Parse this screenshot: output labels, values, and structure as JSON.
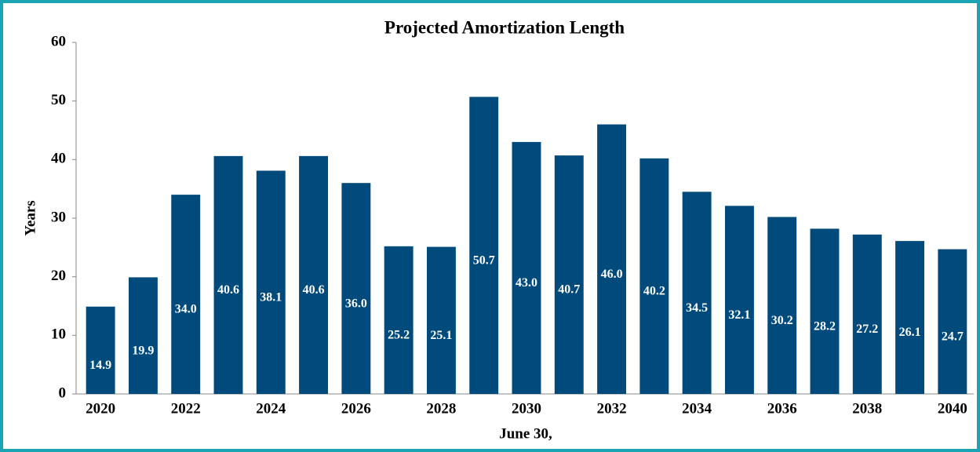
{
  "chart_data": {
    "type": "bar",
    "title": "Projected Amortization  Length",
    "x_label": "June 30,",
    "y_label": "Years",
    "categories": [
      "2020",
      null,
      "2022",
      null,
      "2024",
      null,
      "2026",
      null,
      "2028",
      null,
      "2030",
      null,
      "2032",
      null,
      "2034",
      null,
      "2036",
      null,
      "2038",
      null,
      "2040"
    ],
    "values": [
      14.9,
      19.9,
      34.0,
      40.6,
      38.1,
      40.6,
      36.0,
      25.2,
      25.1,
      50.7,
      43.0,
      40.7,
      46.0,
      40.2,
      34.5,
      32.1,
      30.2,
      28.2,
      27.2,
      26.1,
      24.7
    ],
    "value_labels": [
      "14.9",
      "19.9",
      "34.0",
      "40.6",
      "38.1",
      "40.6",
      "36.0",
      "25.2",
      "25.1",
      "50.7",
      "43.0",
      "40.7",
      "46.0",
      "40.2",
      "34.5",
      "32.1",
      "30.2",
      "28.2",
      "27.2",
      "26.1",
      "24.7"
    ],
    "color": "#004a7c",
    "ylim": [
      0,
      60
    ],
    "yticks": [
      0,
      10,
      20,
      30,
      40,
      50,
      60
    ],
    "grid": false
  }
}
